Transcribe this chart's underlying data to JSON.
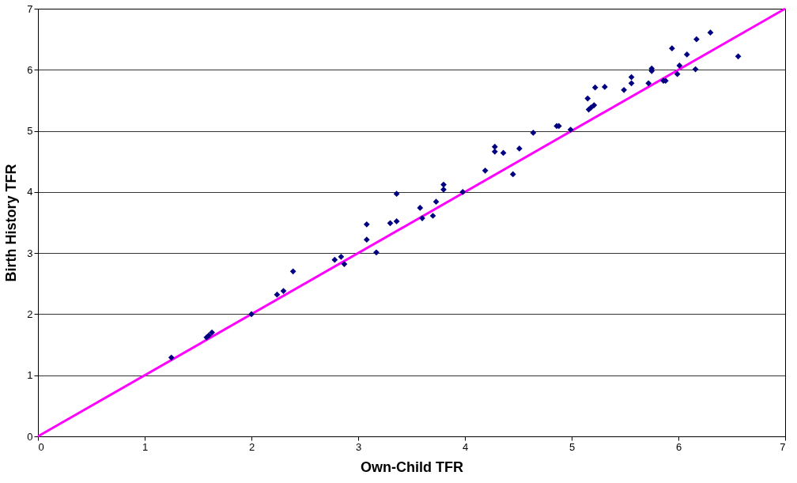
{
  "chart_data": {
    "type": "scatter",
    "xlabel": "Own-Child TFR",
    "ylabel": "Birth History TFR",
    "xlim": [
      0,
      7
    ],
    "ylim": [
      0,
      7
    ],
    "xticks": [
      0,
      1,
      2,
      3,
      4,
      5,
      6,
      7
    ],
    "yticks": [
      0,
      1,
      2,
      3,
      4,
      5,
      6,
      7
    ],
    "grid": "y",
    "series": [
      {
        "marker": "diamond",
        "color": "#000080",
        "x": [
          1.25,
          1.58,
          1.6,
          1.63,
          2.0,
          2.24,
          2.3,
          2.39,
          2.78,
          2.84,
          2.87,
          3.08,
          3.08,
          3.17,
          3.3,
          3.36,
          3.36,
          3.58,
          3.6,
          3.7,
          3.73,
          3.8,
          3.8,
          3.98,
          4.19,
          4.28,
          4.28,
          4.36,
          4.45,
          4.51,
          4.64,
          4.86,
          4.88,
          4.99,
          5.15,
          5.16,
          5.18,
          5.21,
          5.22,
          5.31,
          5.49,
          5.56,
          5.56,
          5.72,
          5.75,
          5.75,
          5.86,
          5.88,
          5.94,
          5.99,
          6.01,
          6.08,
          6.16,
          6.17,
          6.3,
          6.56
        ],
        "values": [
          1.29,
          1.62,
          1.65,
          1.7,
          2.0,
          2.32,
          2.38,
          2.7,
          2.89,
          2.94,
          2.82,
          3.47,
          3.22,
          3.01,
          3.49,
          3.52,
          3.97,
          3.74,
          3.57,
          3.61,
          3.84,
          4.12,
          4.04,
          4.0,
          4.35,
          4.66,
          4.74,
          4.64,
          4.29,
          4.71,
          4.97,
          5.08,
          5.08,
          5.02,
          5.53,
          5.35,
          5.38,
          5.42,
          5.71,
          5.72,
          5.67,
          5.78,
          5.88,
          5.78,
          5.98,
          6.02,
          5.82,
          5.82,
          6.35,
          5.93,
          6.07,
          6.25,
          6.01,
          6.5,
          6.61,
          6.22
        ]
      },
      {
        "type": "line",
        "marker": "none",
        "line_style": "solid",
        "color": "#ff00ff",
        "x": [
          0,
          7
        ],
        "values": [
          0,
          7
        ]
      }
    ]
  }
}
